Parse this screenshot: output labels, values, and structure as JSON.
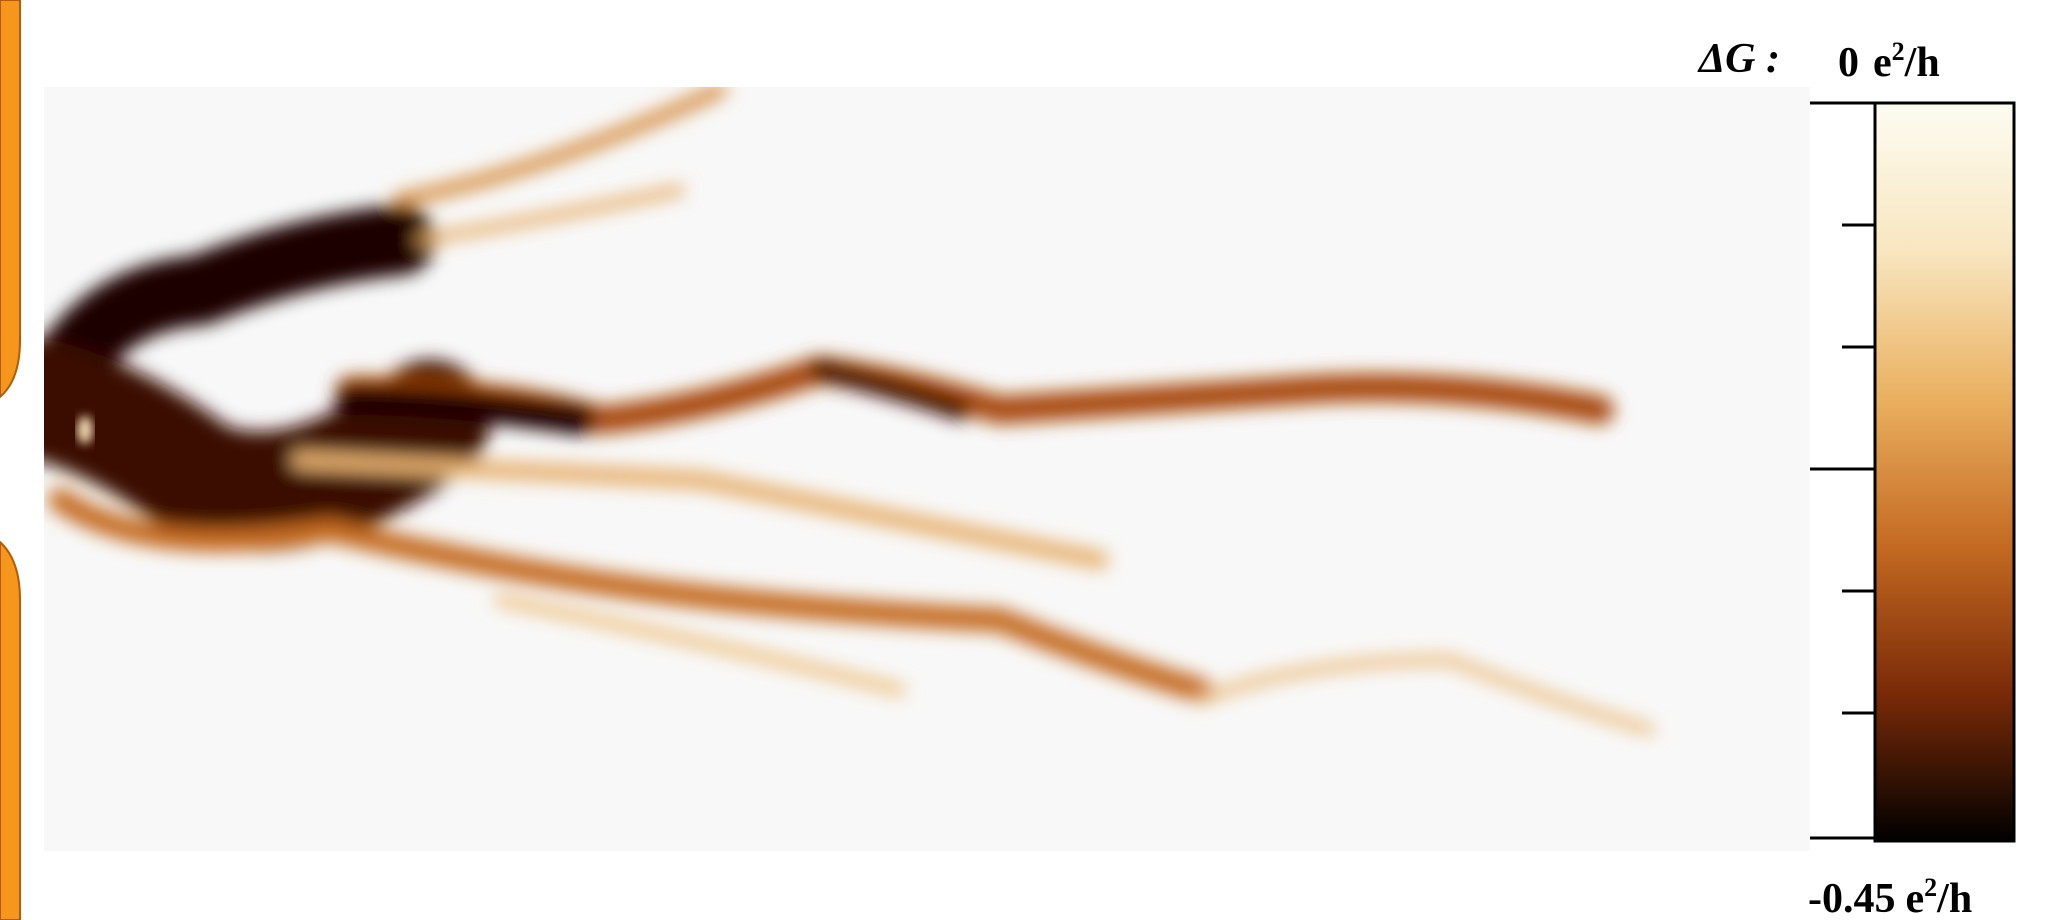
{
  "colorbar": {
    "label": "ΔG :",
    "max_value": "0",
    "min_value": "-0.45",
    "unit_base": "e",
    "unit_exponent": "2",
    "unit_suffix": "/h"
  }
}
